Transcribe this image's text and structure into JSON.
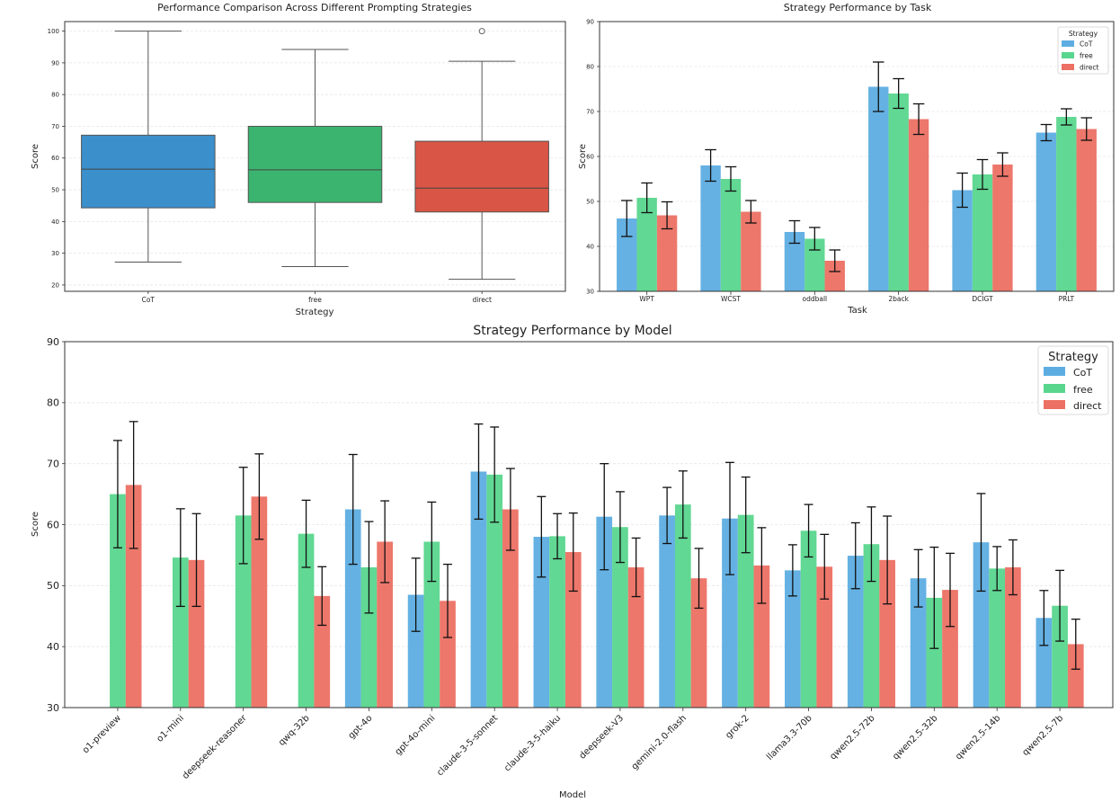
{
  "colors": {
    "CoT": "#5DADE2",
    "free": "#58D68D",
    "direct": "#EC7063",
    "CoT_box": "#3B8FCB",
    "free_box": "#3BB46F",
    "direct_box": "#D95545"
  },
  "chart_data": [
    {
      "type": "box",
      "title": "Performance Comparison Across Different Prompting Strategies",
      "xlabel": "Strategy",
      "ylabel": "Score",
      "ylim": [
        18,
        103
      ],
      "yticks": [
        20,
        30,
        40,
        50,
        60,
        70,
        80,
        90,
        100
      ],
      "grid": true,
      "boxes": [
        {
          "name": "CoT",
          "whisker_low": 27.2,
          "q1": 44.3,
          "median": 56.5,
          "q3": 67.2,
          "whisker_high": 100,
          "outliers": []
        },
        {
          "name": "free",
          "whisker_low": 25.8,
          "q1": 46.0,
          "median": 56.3,
          "q3": 70.0,
          "whisker_high": 94.2,
          "outliers": []
        },
        {
          "name": "direct",
          "whisker_low": 21.8,
          "q1": 43.0,
          "median": 50.5,
          "q3": 65.3,
          "whisker_high": 90.5,
          "outliers": [
            100
          ]
        }
      ]
    },
    {
      "type": "bar",
      "title": "Strategy Performance by Task",
      "xlabel": "Task",
      "ylabel": "Score",
      "ylim": [
        30,
        90
      ],
      "yticks": [
        30,
        40,
        50,
        60,
        70,
        80,
        90
      ],
      "legend_title": "Strategy",
      "legend_position": "top-right",
      "categories": [
        "WPT",
        "WCST",
        "oddball",
        "2back",
        "DCIGT",
        "PRLT"
      ],
      "series": [
        {
          "name": "CoT",
          "values": [
            46.2,
            58.0,
            43.2,
            75.5,
            52.5,
            65.3
          ],
          "errors": [
            4.0,
            3.5,
            2.5,
            5.5,
            3.8,
            1.8
          ]
        },
        {
          "name": "free",
          "values": [
            50.8,
            55.0,
            41.7,
            74.0,
            56.0,
            68.8
          ],
          "errors": [
            3.3,
            2.7,
            2.5,
            3.3,
            3.3,
            1.8
          ]
        },
        {
          "name": "direct",
          "values": [
            46.9,
            47.7,
            36.8,
            68.3,
            58.2,
            66.1
          ],
          "errors": [
            3.0,
            2.5,
            2.4,
            3.4,
            2.6,
            2.5
          ]
        }
      ]
    },
    {
      "type": "bar",
      "title": "Strategy Performance by Model",
      "xlabel": "Model",
      "ylabel": "Score",
      "ylim": [
        30,
        90
      ],
      "yticks": [
        30,
        40,
        50,
        60,
        70,
        80,
        90
      ],
      "legend_title": "Strategy",
      "legend_position": "top-right",
      "categories": [
        "o1-preview",
        "o1-mini",
        "deepseek-reasoner",
        "qwq-32b",
        "gpt-4o",
        "gpt-4o-mini",
        "claude-3-5-sonnet",
        "claude-3-5-haiku",
        "deepseek-V3",
        "gemini-2.0-flash",
        "grok-2",
        "llama3.3-70b",
        "qwen2.5-72b",
        "qwen2.5-32b",
        "qwen2.5-14b",
        "qwen2.5-7b"
      ],
      "series": [
        {
          "name": "CoT",
          "values": [
            null,
            null,
            null,
            null,
            62.5,
            48.5,
            68.7,
            58.0,
            61.3,
            61.5,
            61.0,
            52.5,
            54.9,
            51.2,
            57.1,
            44.7
          ],
          "errors": [
            null,
            null,
            null,
            null,
            9.0,
            6.0,
            7.8,
            6.6,
            8.7,
            4.6,
            9.2,
            4.2,
            5.4,
            4.7,
            8.0,
            4.5
          ]
        },
        {
          "name": "free",
          "values": [
            65.0,
            54.6,
            61.5,
            58.5,
            53.0,
            57.2,
            68.2,
            58.1,
            59.6,
            63.3,
            61.6,
            59.0,
            56.8,
            48.0,
            52.8,
            46.7
          ],
          "errors": [
            8.8,
            8.0,
            7.9,
            5.5,
            7.5,
            6.5,
            7.8,
            3.7,
            5.8,
            5.5,
            6.2,
            4.3,
            6.1,
            8.3,
            3.6,
            5.8
          ]
        },
        {
          "name": "direct",
          "values": [
            66.5,
            54.2,
            64.6,
            48.3,
            57.2,
            47.5,
            62.5,
            55.5,
            53.0,
            51.2,
            53.3,
            53.1,
            54.2,
            49.3,
            53.0,
            40.4
          ],
          "errors": [
            10.4,
            7.6,
            7.0,
            4.8,
            6.7,
            6.0,
            6.7,
            6.4,
            4.8,
            4.9,
            6.2,
            5.3,
            7.2,
            6.0,
            4.5,
            4.1
          ]
        }
      ]
    }
  ]
}
